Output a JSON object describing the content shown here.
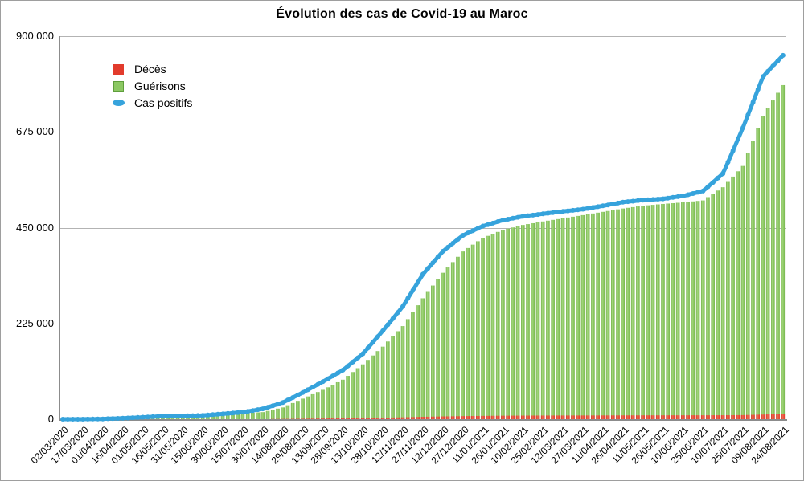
{
  "title": "Évolution des cas de Covid-19 au Maroc",
  "legend": {
    "items": [
      {
        "label": "Décès",
        "color": "#e23b2c",
        "marker": "square"
      },
      {
        "label": "Guérisons",
        "color": "#8cc863",
        "marker": "square"
      },
      {
        "label": "Cas positifs",
        "color": "#36a3dc",
        "marker": "lens"
      }
    ]
  },
  "y_axis": {
    "ticks": [
      "900 000",
      "675 000",
      "450 000",
      "225 000",
      "0"
    ],
    "max": 900000
  },
  "chart_data": {
    "type": "bar",
    "note": "cumulative counts; bars = Guérisons & Décès, thick dotted line = Cas positifs; values sampled every 15 days at each x label",
    "ylim": [
      0,
      900000
    ],
    "grid": "horizontal",
    "legend_position": "top-left-inside",
    "x_labels": [
      "02/03/2020",
      "17/03/2020",
      "01/04/2020",
      "16/04/2020",
      "01/05/2020",
      "16/05/2020",
      "31/05/2020",
      "15/06/2020",
      "30/06/2020",
      "15/07/2020",
      "30/07/2020",
      "14/08/2020",
      "29/08/2020",
      "13/09/2020",
      "28/09/2020",
      "13/10/2020",
      "28/10/2020",
      "12/11/2020",
      "27/11/2020",
      "12/12/2020",
      "27/12/2020",
      "11/01/2021",
      "26/01/2021",
      "10/02/2021",
      "25/02/2021",
      "12/03/2021",
      "27/03/2021",
      "11/04/2021",
      "26/04/2021",
      "11/05/2021",
      "26/05/2021",
      "10/06/2021",
      "25/06/2021",
      "10/07/2021",
      "25/07/2021",
      "09/08/2021",
      "24/08/2021"
    ],
    "series": [
      {
        "name": "Cas positifs",
        "type": "line",
        "color": "#36a3dc",
        "values": [
          1,
          44,
          654,
          2283,
          4729,
          6870,
          7807,
          8885,
          12533,
          16545,
          24322,
          39241,
          62590,
          88203,
          115241,
          153761,
          207718,
          265165,
          340684,
          394564,
          432079,
          453789,
          467493,
          476535,
          482514,
          488144,
          493353,
          501232,
          509972,
          514670,
          517808,
          524500,
          536000,
          577000,
          685000,
          805000,
          855000
        ]
      },
      {
        "name": "Guérisons",
        "type": "bar",
        "color": "#8cc863",
        "values": [
          0,
          0,
          29,
          249,
          1256,
          3660,
          5459,
          7823,
          8920,
          13965,
          16685,
          27653,
          48262,
          68970,
          92825,
          128838,
          170432,
          218755,
          284063,
          344035,
          394101,
          426124,
          444613,
          456313,
          464555,
          471975,
          479459,
          487162,
          495043,
          501519,
          505734,
          509416,
          514000,
          545000,
          595000,
          713000,
          785000
        ]
      },
      {
        "name": "Décès",
        "type": "bar",
        "color": "#e23b2c",
        "values": [
          0,
          2,
          36,
          130,
          173,
          192,
          205,
          212,
          228,
          263,
          353,
          601,
          1141,
          1614,
          2041,
          2642,
          3506,
          4425,
          5619,
          6542,
          7272,
          7768,
          8187,
          8453,
          8618,
          8713,
          8779,
          8879,
          9003,
          9090,
          9137,
          9192,
          9245,
          9346,
          9665,
          10889,
          12300
        ]
      }
    ]
  }
}
